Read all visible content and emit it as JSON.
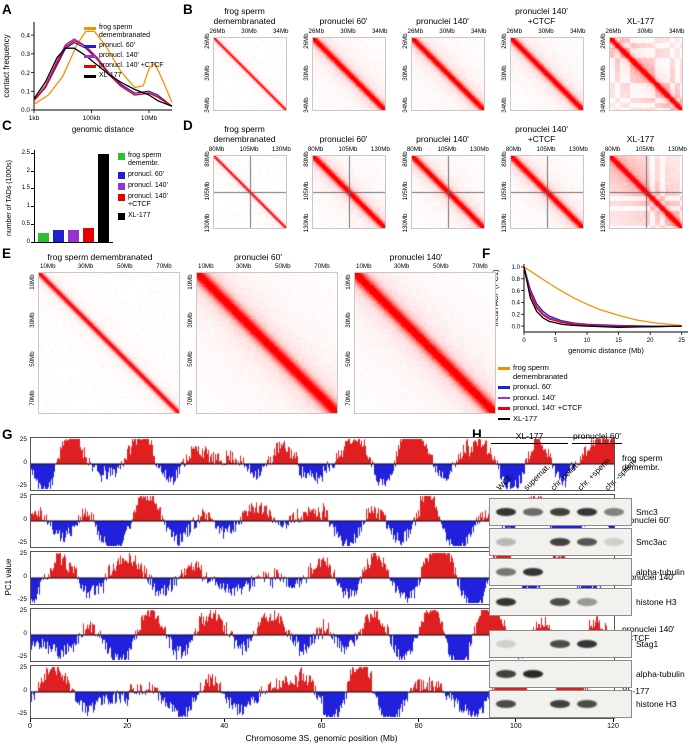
{
  "colors": {
    "frog_sperm": "#F29400",
    "pronuclei_60": "#2020CC",
    "pronuclei_140": "#9933CC",
    "pronuclei_140_ctcf": "#E60000",
    "xl177": "#000000",
    "bar_green": "#2FBF2F",
    "heatmap_red": "#FF0000",
    "pc1_positive": "#E02020",
    "pc1_negative": "#2020DD"
  },
  "chart_data": [
    {
      "id": "A",
      "letter": "A",
      "type": "line",
      "ylabel": "contact frequency",
      "xlabel": "genomic distance",
      "yticks": [
        "0.0",
        "0.1",
        "0.2",
        "0.3",
        "0.4"
      ],
      "xticks": [
        "1kb",
        "100kb",
        "10Mb"
      ],
      "xscale": "log10(bp)",
      "ylim": [
        0,
        0.47
      ],
      "legend": [
        {
          "lines": [
            "frog sperm",
            "demembranated"
          ],
          "color": "#F29400"
        },
        {
          "lines": [
            "pronucl. 60'"
          ],
          "color": "#2020CC"
        },
        {
          "lines": [
            "pronucl. 140'"
          ],
          "color": "#9933CC"
        },
        {
          "lines": [
            "pronucl. 140' +CTCF"
          ],
          "color": "#E60000"
        },
        {
          "lines": [
            "XL-177"
          ],
          "color": "#000000"
        }
      ],
      "series": [
        {
          "name": "frog sperm demembranated",
          "color": "#F29400",
          "points": [
            [
              3,
              0.03
            ],
            [
              3.5,
              0.08
            ],
            [
              4,
              0.18
            ],
            [
              4.5,
              0.35
            ],
            [
              4.8,
              0.42
            ],
            [
              5.1,
              0.42
            ],
            [
              5.5,
              0.34
            ],
            [
              6,
              0.21
            ],
            [
              6.5,
              0.12
            ],
            [
              6.8,
              0.13
            ],
            [
              7,
              0.22
            ],
            [
              7.2,
              0.25
            ],
            [
              7.5,
              0.15
            ],
            [
              7.8,
              0.04
            ]
          ]
        },
        {
          "name": "pronucl. 60'",
          "color": "#2020CC",
          "points": [
            [
              3,
              0.05
            ],
            [
              3.4,
              0.12
            ],
            [
              3.8,
              0.24
            ],
            [
              4.1,
              0.33
            ],
            [
              4.4,
              0.36
            ],
            [
              4.8,
              0.33
            ],
            [
              5.2,
              0.27
            ],
            [
              5.6,
              0.2
            ],
            [
              6,
              0.14
            ],
            [
              6.5,
              0.09
            ],
            [
              7,
              0.1
            ],
            [
              7.3,
              0.08
            ],
            [
              7.8,
              0.02
            ]
          ]
        },
        {
          "name": "pronucl. 140'",
          "color": "#9933CC",
          "points": [
            [
              3,
              0.05
            ],
            [
              3.4,
              0.13
            ],
            [
              3.8,
              0.26
            ],
            [
              4.1,
              0.35
            ],
            [
              4.4,
              0.38
            ],
            [
              4.8,
              0.34
            ],
            [
              5.2,
              0.28
            ],
            [
              5.6,
              0.2
            ],
            [
              6,
              0.13
            ],
            [
              6.5,
              0.08
            ],
            [
              7,
              0.09
            ],
            [
              7.3,
              0.07
            ],
            [
              7.8,
              0.02
            ]
          ]
        },
        {
          "name": "pronucl. 140' +CTCF",
          "color": "#E60000",
          "points": [
            [
              3,
              0.05
            ],
            [
              3.4,
              0.12
            ],
            [
              3.8,
              0.25
            ],
            [
              4.1,
              0.34
            ],
            [
              4.4,
              0.37
            ],
            [
              4.8,
              0.34
            ],
            [
              5.2,
              0.27
            ],
            [
              5.6,
              0.19
            ],
            [
              6,
              0.13
            ],
            [
              6.5,
              0.08
            ],
            [
              7,
              0.09
            ],
            [
              7.3,
              0.07
            ],
            [
              7.8,
              0.02
            ]
          ]
        },
        {
          "name": "XL-177",
          "color": "#000000",
          "points": [
            [
              3,
              0.06
            ],
            [
              3.4,
              0.15
            ],
            [
              3.8,
              0.28
            ],
            [
              4.1,
              0.33
            ],
            [
              4.4,
              0.33
            ],
            [
              4.8,
              0.29
            ],
            [
              5.2,
              0.24
            ],
            [
              5.6,
              0.19
            ],
            [
              6,
              0.15
            ],
            [
              6.5,
              0.11
            ],
            [
              7,
              0.08
            ],
            [
              7.3,
              0.05
            ],
            [
              7.8,
              0.02
            ]
          ]
        }
      ]
    },
    {
      "id": "B",
      "letter": "B",
      "type": "heatmap-row",
      "ticks": [
        "26Mb",
        "30Mb",
        "34Mb"
      ],
      "maps": [
        {
          "title": [
            "frog sperm",
            "demembranated"
          ],
          "style": "sharp"
        },
        {
          "title": [
            "pronuclei 60'"
          ],
          "style": "diffuse"
        },
        {
          "title": [
            "pronuclei 140'"
          ],
          "style": "diffuse"
        },
        {
          "title": [
            "pronuclei 140'",
            "+CTCF"
          ],
          "style": "diffuse"
        },
        {
          "title": [
            "XL-177"
          ],
          "style": "blocky"
        }
      ]
    },
    {
      "id": "C",
      "letter": "C",
      "type": "bar",
      "ylabel": "number of TADs (1000s)",
      "ylim": [
        0,
        2.6
      ],
      "yticks": [
        "0",
        "0.5",
        "1",
        "1.5",
        "2",
        "2.5"
      ],
      "bars": [
        {
          "label": [
            "frog sperm",
            "demembr."
          ],
          "value": 0.25,
          "color": "#2FBF2F"
        },
        {
          "label": [
            "pronucl. 60'"
          ],
          "value": 0.35,
          "color": "#2020CC"
        },
        {
          "label": [
            "pronucl. 140'"
          ],
          "value": 0.33,
          "color": "#9933CC"
        },
        {
          "label": [
            "pronucl. 140'",
            "+CTCF"
          ],
          "value": 0.4,
          "color": "#E60000"
        },
        {
          "label": [
            "XL-177"
          ],
          "value": 2.5,
          "color": "#000000"
        }
      ]
    },
    {
      "id": "D",
      "letter": "D",
      "type": "heatmap-row",
      "ticks": [
        "80Mb",
        "105Mb",
        "130Mb"
      ],
      "crosshair": 0.5,
      "maps": [
        {
          "title": [
            "frog sperm",
            "demembranated"
          ],
          "style": "sharp"
        },
        {
          "title": [
            "pronuclei 60'"
          ],
          "style": "diffuse"
        },
        {
          "title": [
            "pronuclei 140'"
          ],
          "style": "diffuse"
        },
        {
          "title": [
            "pronuclei 140'",
            "+CTCF"
          ],
          "style": "diffuse"
        },
        {
          "title": [
            "XL-177"
          ],
          "style": "blocky"
        }
      ]
    },
    {
      "id": "E",
      "letter": "E",
      "type": "heatmap-row",
      "ticks": [
        "10Mb",
        "30Mb",
        "50Mb",
        "70Mb"
      ],
      "maps": [
        {
          "title": [
            "frog sperm demembranated"
          ],
          "style": "sharp"
        },
        {
          "title": [
            "pronuclei 60'"
          ],
          "style": "diffuse"
        },
        {
          "title": [
            "pronuclei 140'"
          ],
          "style": "diffuse"
        }
      ]
    },
    {
      "id": "F",
      "letter": "F",
      "type": "line",
      "ylabel": "mean ACF (PC1)",
      "xlabel": "genomic distance (Mb)",
      "yticks": [
        "0.0",
        "0.2",
        "0.4",
        "0.6",
        "0.8",
        "1.0"
      ],
      "xticks": [
        "0",
        "5",
        "10",
        "15",
        "20",
        "25"
      ],
      "ylim": [
        -0.1,
        1.05
      ],
      "legend": [
        {
          "lines": [
            "frog sperm",
            "demembranated"
          ],
          "color": "#F29400"
        },
        {
          "lines": [
            "pronucl. 60'"
          ],
          "color": "#2020CC"
        },
        {
          "lines": [
            "pronucl. 140'"
          ],
          "color": "#9933CC"
        },
        {
          "lines": [
            "pronucl. 140' +CTCF"
          ],
          "color": "#E60000"
        },
        {
          "lines": [
            "XL-177"
          ],
          "color": "#000000"
        }
      ],
      "series": [
        {
          "name": "frog sperm demembranated",
          "color": "#F29400",
          "points": [
            [
              0,
              1
            ],
            [
              1,
              0.93
            ],
            [
              2,
              0.86
            ],
            [
              4,
              0.72
            ],
            [
              6,
              0.59
            ],
            [
              8,
              0.47
            ],
            [
              10,
              0.37
            ],
            [
              12,
              0.28
            ],
            [
              15,
              0.18
            ],
            [
              18,
              0.1
            ],
            [
              21,
              0.05
            ],
            [
              25,
              0.01
            ]
          ]
        },
        {
          "name": "pronucl. 60'",
          "color": "#2020CC",
          "points": [
            [
              0,
              1
            ],
            [
              1,
              0.62
            ],
            [
              2,
              0.38
            ],
            [
              3,
              0.25
            ],
            [
              4,
              0.17
            ],
            [
              6,
              0.09
            ],
            [
              8,
              0.05
            ],
            [
              10,
              0.03
            ],
            [
              15,
              0.01
            ],
            [
              20,
              0
            ],
            [
              25,
              0
            ]
          ]
        },
        {
          "name": "pronucl. 140'",
          "color": "#9933CC",
          "points": [
            [
              0,
              1
            ],
            [
              1,
              0.58
            ],
            [
              2,
              0.34
            ],
            [
              3,
              0.21
            ],
            [
              4,
              0.14
            ],
            [
              6,
              0.07
            ],
            [
              8,
              0.04
            ],
            [
              10,
              0.02
            ],
            [
              15,
              0
            ],
            [
              20,
              -0.01
            ],
            [
              25,
              0
            ]
          ]
        },
        {
          "name": "pronucl. 140' +CTCF",
          "color": "#E60000",
          "points": [
            [
              0,
              1
            ],
            [
              1,
              0.55
            ],
            [
              2,
              0.31
            ],
            [
              3,
              0.19
            ],
            [
              4,
              0.12
            ],
            [
              6,
              0.06
            ],
            [
              8,
              0.03
            ],
            [
              10,
              0.01
            ],
            [
              15,
              -0.01
            ],
            [
              20,
              -0.01
            ],
            [
              25,
              0
            ]
          ]
        },
        {
          "name": "XL-177",
          "color": "#000000",
          "points": [
            [
              0,
              1
            ],
            [
              1,
              0.48
            ],
            [
              2,
              0.25
            ],
            [
              3,
              0.14
            ],
            [
              4,
              0.08
            ],
            [
              6,
              0.03
            ],
            [
              8,
              0.01
            ],
            [
              10,
              0
            ],
            [
              15,
              -0.02
            ],
            [
              20,
              -0.01
            ],
            [
              25,
              0
            ]
          ]
        }
      ]
    },
    {
      "id": "G",
      "letter": "G",
      "type": "genomic-tracks",
      "ylabel": "PC1 value",
      "xlabel": "Chromosome 3S, genomic position (Mb)",
      "xticks": [
        "0",
        "20",
        "40",
        "60",
        "80",
        "100",
        "120"
      ],
      "ytick_top": "25",
      "ytick_mid": "0",
      "ytick_bot": "-25",
      "xlim": [
        0,
        120
      ],
      "ylim": [
        -25,
        25
      ],
      "tracks": [
        {
          "label": [
            "frog sperm",
            "demembr."
          ]
        },
        {
          "label": [
            "pronuclei 60'"
          ]
        },
        {
          "label": [
            "pronuclei 140'"
          ]
        },
        {
          "label": [
            "pronuclei 140'",
            "+CTCF"
          ]
        },
        {
          "label": [
            "XL-177"
          ]
        }
      ]
    },
    {
      "id": "H",
      "letter": "H",
      "type": "western-blot",
      "groups": [
        {
          "label": "XL-177",
          "from": 0,
          "to": 2
        },
        {
          "label": "pronuclei 60'",
          "from": 3,
          "to": 4
        }
      ],
      "lanes": [
        "WCE",
        "supernat.",
        "chr. pellet",
        "chr. +sperm",
        "chr. -sperm"
      ],
      "blots": [
        {
          "label": "Smc3",
          "gap": false,
          "bands": [
            0.85,
            0.6,
            0.8,
            0.85,
            0.5
          ]
        },
        {
          "label": "Smc3ac",
          "gap": false,
          "bands": [
            0.25,
            0,
            0.8,
            0.7,
            0.15
          ]
        },
        {
          "label": "alpha-tubulin",
          "gap": false,
          "bands": [
            0.55,
            0.85,
            0,
            0,
            0
          ]
        },
        {
          "label": "histone H3",
          "gap": false,
          "bands": [
            0.85,
            0,
            0.75,
            0.4,
            0
          ]
        },
        {
          "label": "Stag1",
          "gap": true,
          "bands": [
            0.15,
            0,
            0.75,
            0.85,
            0
          ]
        },
        {
          "label": "alpha-tubulin",
          "gap": false,
          "bands": [
            0.8,
            0.9,
            0,
            0,
            0
          ]
        },
        {
          "label": "histone H3",
          "gap": false,
          "bands": [
            0.75,
            0,
            0.8,
            0.75,
            0
          ]
        }
      ]
    }
  ]
}
